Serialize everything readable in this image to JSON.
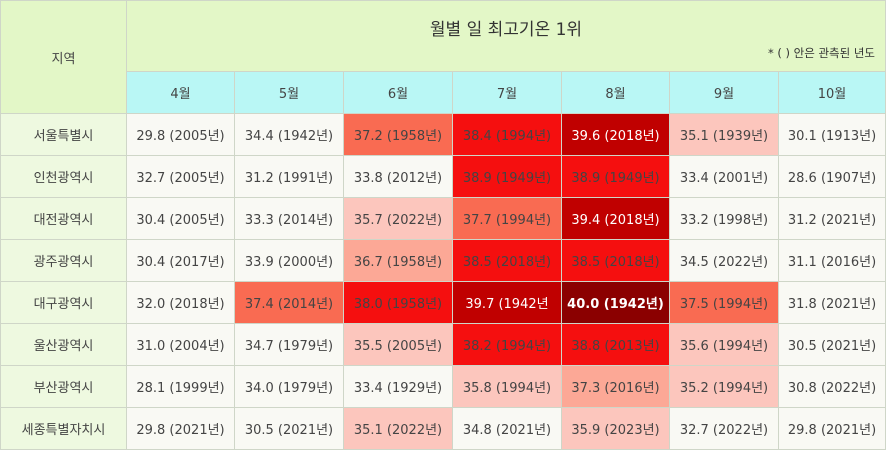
{
  "title": "월별 일 최고기온 1위",
  "note": "* ( ) 안은 관측된 년도",
  "region_header": "지역",
  "months": [
    "4월",
    "5월",
    "6월",
    "7월",
    "8월",
    "9월",
    "10월"
  ],
  "rows": [
    {
      "region": "서울특별시",
      "cells": [
        "29.8 (2005년)",
        "34.4 (1942년)",
        "37.2 (1958년)",
        "38.4 (1994년)",
        "39.6 (2018년)",
        "35.1 (1939년)",
        "30.1 (1913년)"
      ]
    },
    {
      "region": "인천광역시",
      "cells": [
        "32.7 (2005년)",
        "31.2 (1991년)",
        "33.8 (2012년)",
        "38.9 (1949년)",
        "38.9 (1949년)",
        "33.4 (2001년)",
        "28.6 (1907년)"
      ]
    },
    {
      "region": "대전광역시",
      "cells": [
        "30.4 (2005년)",
        "33.3 (2014년)",
        "35.7 (2022년)",
        "37.7 (1994년)",
        "39.4 (2018년)",
        "33.2 (1998년)",
        "31.2 (2021년)"
      ]
    },
    {
      "region": "광주광역시",
      "cells": [
        "30.4 (2017년)",
        "33.9 (2000년)",
        "36.7 (1958년)",
        "38.5 (2018년)",
        "38.5 (2018년)",
        "34.5 (2022년)",
        "31.1 (2016년)"
      ]
    },
    {
      "region": "대구광역시",
      "cells": [
        "32.0 (2018년)",
        "37.4 (2014년)",
        "38.0 (1958년)",
        "39.7 (1942년",
        "40.0 (1942년)",
        "37.5 (1994년)",
        "31.8 (2021년)"
      ]
    },
    {
      "region": "울산광역시",
      "cells": [
        "31.0 (2004년)",
        "34.7 (1979년)",
        "35.5 (2005년)",
        "38.2 (1994년)",
        "38.8 (2013년)",
        "35.6 (1994년)",
        "30.5 (2021년)"
      ]
    },
    {
      "region": "부산광역시",
      "cells": [
        "28.1 (1999년)",
        "34.0 (1979년)",
        "33.4 (1929년)",
        "35.8 (1994년)",
        "37.3 (2016년)",
        "35.2 (1994년)",
        "30.8 (2022년)"
      ]
    },
    {
      "region": "세종특별자치시",
      "cells": [
        "29.8 (2021년)",
        "30.5 (2021년)",
        "35.1 (2022년)",
        "34.8 (2021년)",
        "35.9 (2023년)",
        "32.7 (2022년)",
        "29.8 (2021년)"
      ]
    }
  ],
  "cell_colors": [
    [
      "#f9f9f4",
      "#f9f9f4",
      "#f96b52",
      "#f50f0f",
      "#c00000",
      "#fcc6bd",
      "#f9f9f4"
    ],
    [
      "#f9f9f4",
      "#f9f9f4",
      "#f9f9f4",
      "#f50f0f",
      "#f50f0f",
      "#f9f9f4",
      "#f9f9f4"
    ],
    [
      "#f9f9f4",
      "#f9f9f4",
      "#fcc6bd",
      "#f96b52",
      "#c00000",
      "#f9f9f4",
      "#f9f9f4"
    ],
    [
      "#f9f9f4",
      "#f9f9f4",
      "#fca896",
      "#f50f0f",
      "#f50f0f",
      "#f9f9f4",
      "#f9f9f4"
    ],
    [
      "#f9f9f4",
      "#f96b52",
      "#f50f0f",
      "#c00000",
      "#8b0000",
      "#f96b52",
      "#f9f9f4"
    ],
    [
      "#f9f9f4",
      "#f9f9f4",
      "#fcc6bd",
      "#f50f0f",
      "#f50f0f",
      "#fcc6bd",
      "#f9f9f4"
    ],
    [
      "#f9f9f4",
      "#f9f9f4",
      "#f9f9f4",
      "#fcc6bd",
      "#fca896",
      "#fcc6bd",
      "#f9f9f4"
    ],
    [
      "#f9f9f4",
      "#f9f9f4",
      "#fcc6bd",
      "#f9f9f4",
      "#fcc6bd",
      "#f9f9f4",
      "#f9f9f4"
    ]
  ],
  "text_colors": [
    [
      "#444444",
      "#444444",
      "#444444",
      "#444444",
      "#ffffff",
      "#444444",
      "#444444"
    ],
    [
      "#444444",
      "#444444",
      "#444444",
      "#444444",
      "#444444",
      "#444444",
      "#444444"
    ],
    [
      "#444444",
      "#444444",
      "#444444",
      "#444444",
      "#ffffff",
      "#444444",
      "#444444"
    ],
    [
      "#444444",
      "#444444",
      "#444444",
      "#444444",
      "#444444",
      "#444444",
      "#444444"
    ],
    [
      "#444444",
      "#444444",
      "#444444",
      "#ffffff",
      "#ffffff",
      "#444444",
      "#444444"
    ],
    [
      "#444444",
      "#444444",
      "#444444",
      "#444444",
      "#444444",
      "#444444",
      "#444444"
    ],
    [
      "#444444",
      "#444444",
      "#444444",
      "#444444",
      "#444444",
      "#444444",
      "#444444"
    ],
    [
      "#444444",
      "#444444",
      "#444444",
      "#444444",
      "#444444",
      "#444444",
      "#444444"
    ]
  ],
  "bold_cells": [
    [
      4,
      4
    ]
  ]
}
